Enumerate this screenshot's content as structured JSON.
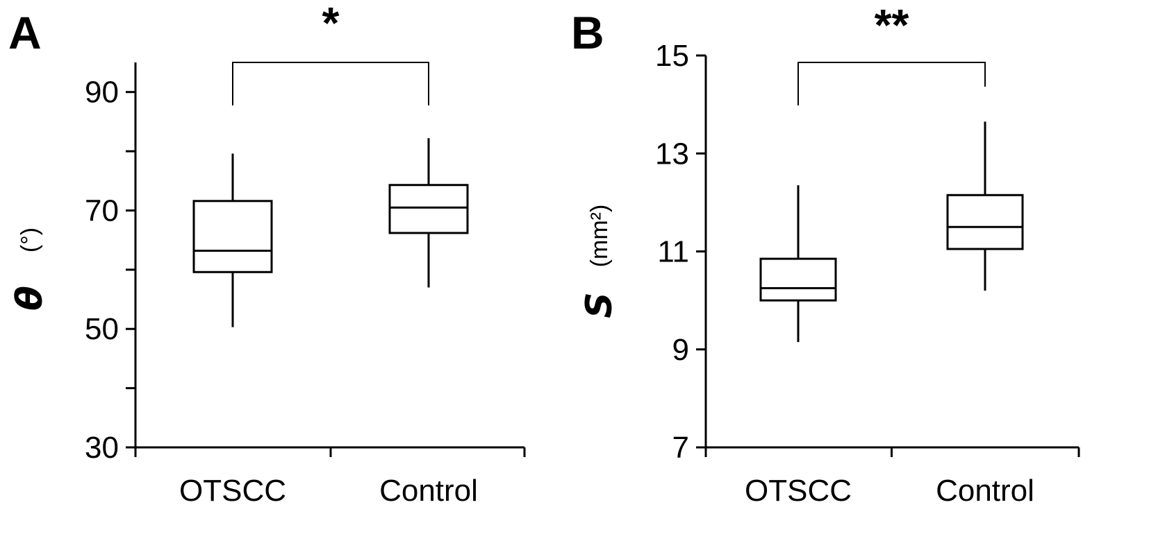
{
  "chart_data": [
    {
      "type": "boxplot",
      "panel_label": "A",
      "ylabel_symbol": "θ",
      "ylabel_unit": "(°)",
      "ylim": [
        30,
        95
      ],
      "yticks": [
        30,
        50,
        70,
        90
      ],
      "categories": [
        "OTSCC",
        "Control"
      ],
      "boxes": [
        {
          "min": 50.3,
          "q1": 59.6,
          "median": 63.2,
          "q3": 71.6,
          "max": 79.6
        },
        {
          "min": 57.0,
          "q1": 66.2,
          "median": 70.5,
          "q3": 74.3,
          "max": 82.2
        }
      ],
      "significance": "*",
      "grid": false
    },
    {
      "type": "boxplot",
      "panel_label": "B",
      "ylabel_symbol": "S",
      "ylabel_unit": "(mm²)",
      "ylim": [
        7,
        15
      ],
      "yticks": [
        7,
        9,
        11,
        13,
        15
      ],
      "categories": [
        "OTSCC",
        "Control"
      ],
      "boxes": [
        {
          "min": 9.15,
          "q1": 10.0,
          "median": 10.25,
          "q3": 10.85,
          "max": 12.35
        },
        {
          "min": 10.2,
          "q1": 11.05,
          "median": 11.5,
          "q3": 12.15,
          "max": 13.65
        }
      ],
      "significance": "**",
      "grid": false
    }
  ]
}
